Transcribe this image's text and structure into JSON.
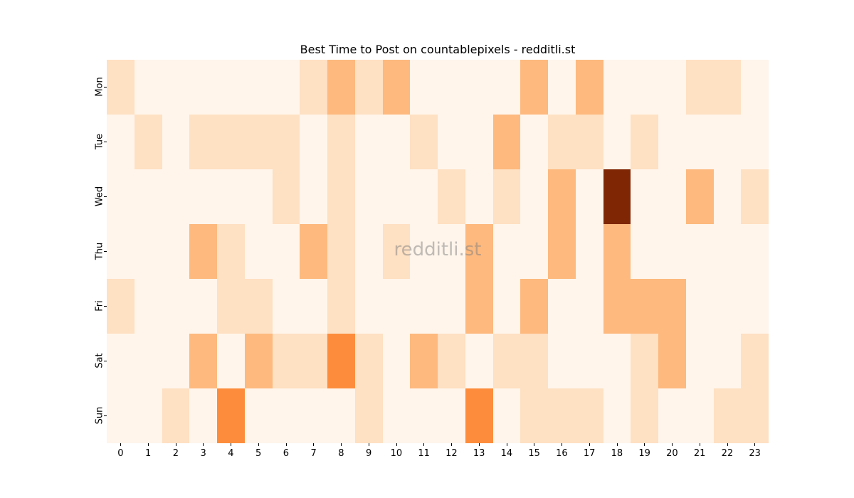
{
  "chart_data": {
    "type": "heatmap",
    "title": "Best Time to Post on countablepixels - redditli.st",
    "watermark": "redditli.st",
    "xlabel": "",
    "ylabel": "",
    "x": [
      "0",
      "1",
      "2",
      "3",
      "4",
      "5",
      "6",
      "7",
      "8",
      "9",
      "10",
      "11",
      "12",
      "13",
      "14",
      "15",
      "16",
      "17",
      "18",
      "19",
      "20",
      "21",
      "22",
      "23"
    ],
    "y": [
      "Mon",
      "Tue",
      "Wed",
      "Thu",
      "Fri",
      "Sat",
      "Sun"
    ],
    "colormap": "Oranges",
    "colorbar": false,
    "value_scale_note": "relative intensity levels 0-4 (0 lightest, 4 darkest)",
    "level_colors": [
      "#fff5eb",
      "#fee0c2",
      "#fdb97e",
      "#fd8d3c",
      "#7f2704"
    ],
    "values": [
      [
        1,
        0,
        0,
        0,
        0,
        0,
        0,
        1,
        2,
        1,
        2,
        0,
        0,
        0,
        0,
        2,
        0,
        2,
        0,
        0,
        0,
        1,
        1,
        0
      ],
      [
        0,
        1,
        0,
        1,
        1,
        1,
        1,
        0,
        1,
        0,
        0,
        1,
        0,
        0,
        2,
        0,
        1,
        1,
        0,
        1,
        0,
        0,
        0,
        0
      ],
      [
        0,
        0,
        0,
        0,
        0,
        0,
        1,
        0,
        1,
        0,
        0,
        0,
        1,
        0,
        1,
        0,
        2,
        0,
        4,
        0,
        0,
        2,
        0,
        1
      ],
      [
        0,
        0,
        0,
        2,
        1,
        0,
        0,
        2,
        1,
        0,
        1,
        0,
        0,
        2,
        0,
        0,
        2,
        0,
        2,
        0,
        0,
        0,
        0,
        0
      ],
      [
        1,
        0,
        0,
        0,
        1,
        1,
        0,
        0,
        1,
        0,
        0,
        0,
        0,
        2,
        0,
        2,
        0,
        0,
        2,
        2,
        2,
        0,
        0,
        0
      ],
      [
        0,
        0,
        0,
        2,
        0,
        2,
        1,
        1,
        3,
        1,
        0,
        2,
        1,
        0,
        1,
        1,
        0,
        0,
        0,
        1,
        2,
        0,
        0,
        1
      ],
      [
        0,
        0,
        1,
        0,
        3,
        0,
        0,
        0,
        0,
        1,
        0,
        0,
        0,
        3,
        0,
        1,
        1,
        1,
        0,
        1,
        0,
        0,
        1,
        1
      ]
    ]
  }
}
